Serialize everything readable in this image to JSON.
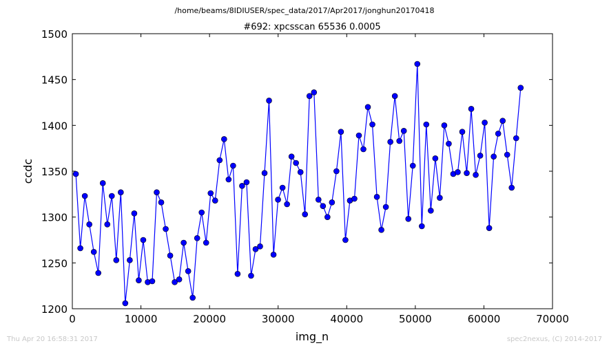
{
  "chart_data": {
    "type": "line",
    "suptitle": "/home/beams/8IDIUSER/spec_data/2017/Apr2017/jonghun20170418",
    "title": "#692: xpcsscan 65536 0.0005",
    "xlabel": "img_n",
    "ylabel": "ccdc",
    "xlim": [
      0,
      70000
    ],
    "ylim": [
      1200,
      1500
    ],
    "xticks": [
      0,
      10000,
      20000,
      30000,
      40000,
      50000,
      60000,
      70000
    ],
    "yticks": [
      1200,
      1250,
      1300,
      1350,
      1400,
      1450,
      1500
    ],
    "grid": false,
    "line_color": "#0000ff",
    "series": [
      {
        "marker": "circle",
        "x": [
          512,
          1167,
          1822,
          2477,
          3132,
          3787,
          4442,
          5097,
          5752,
          6407,
          7062,
          7717,
          8372,
          9027,
          9682,
          10337,
          10992,
          11647,
          12302,
          12957,
          13612,
          14267,
          14922,
          15577,
          16232,
          16887,
          17542,
          18197,
          18852,
          19507,
          20162,
          20817,
          21472,
          22127,
          22782,
          23437,
          24092,
          24747,
          25402,
          26057,
          26712,
          27367,
          28022,
          28677,
          29332,
          29987,
          30642,
          31297,
          31952,
          32607,
          33262,
          33917,
          34572,
          35227,
          35882,
          36537,
          37192,
          37847,
          38502,
          39157,
          39812,
          40467,
          41122,
          41777,
          42432,
          43087,
          43742,
          44397,
          45052,
          45707,
          46362,
          47017,
          47672,
          48327,
          48982,
          49637,
          50292,
          50947,
          51602,
          52257,
          52912,
          53567,
          54222,
          54877,
          55532,
          56187,
          56842,
          57497,
          58152,
          58807,
          59462,
          60117,
          60772,
          61427,
          62082,
          62737,
          63392,
          64047,
          64702,
          65357
        ],
        "y": [
          1347,
          1266,
          1323,
          1292,
          1262,
          1239,
          1337,
          1292,
          1323,
          1253,
          1327,
          1206,
          1253,
          1304,
          1231,
          1275,
          1229,
          1230,
          1327,
          1316,
          1287,
          1258,
          1229,
          1232,
          1272,
          1241,
          1212,
          1277,
          1305,
          1272,
          1326,
          1318,
          1362,
          1385,
          1341,
          1356,
          1238,
          1334,
          1338,
          1236,
          1265,
          1268,
          1348,
          1427,
          1259,
          1319,
          1332,
          1314,
          1366,
          1359,
          1349,
          1303,
          1432,
          1436,
          1319,
          1312,
          1300,
          1316,
          1350,
          1393,
          1275,
          1318,
          1320,
          1389,
          1374,
          1420,
          1401,
          1322,
          1286,
          1311,
          1382,
          1432,
          1383,
          1394,
          1298,
          1356,
          1467,
          1290,
          1401,
          1307,
          1364,
          1321,
          1400,
          1380,
          1347,
          1349,
          1393,
          1348,
          1418,
          1346,
          1367,
          1403,
          1288,
          1366,
          1391,
          1405,
          1368,
          1332,
          1386,
          1441
        ]
      }
    ]
  },
  "footer": {
    "timestamp": "Thu Apr 20 16:58:31 2017",
    "credit": "spec2nexus, (C) 2014-2017"
  }
}
